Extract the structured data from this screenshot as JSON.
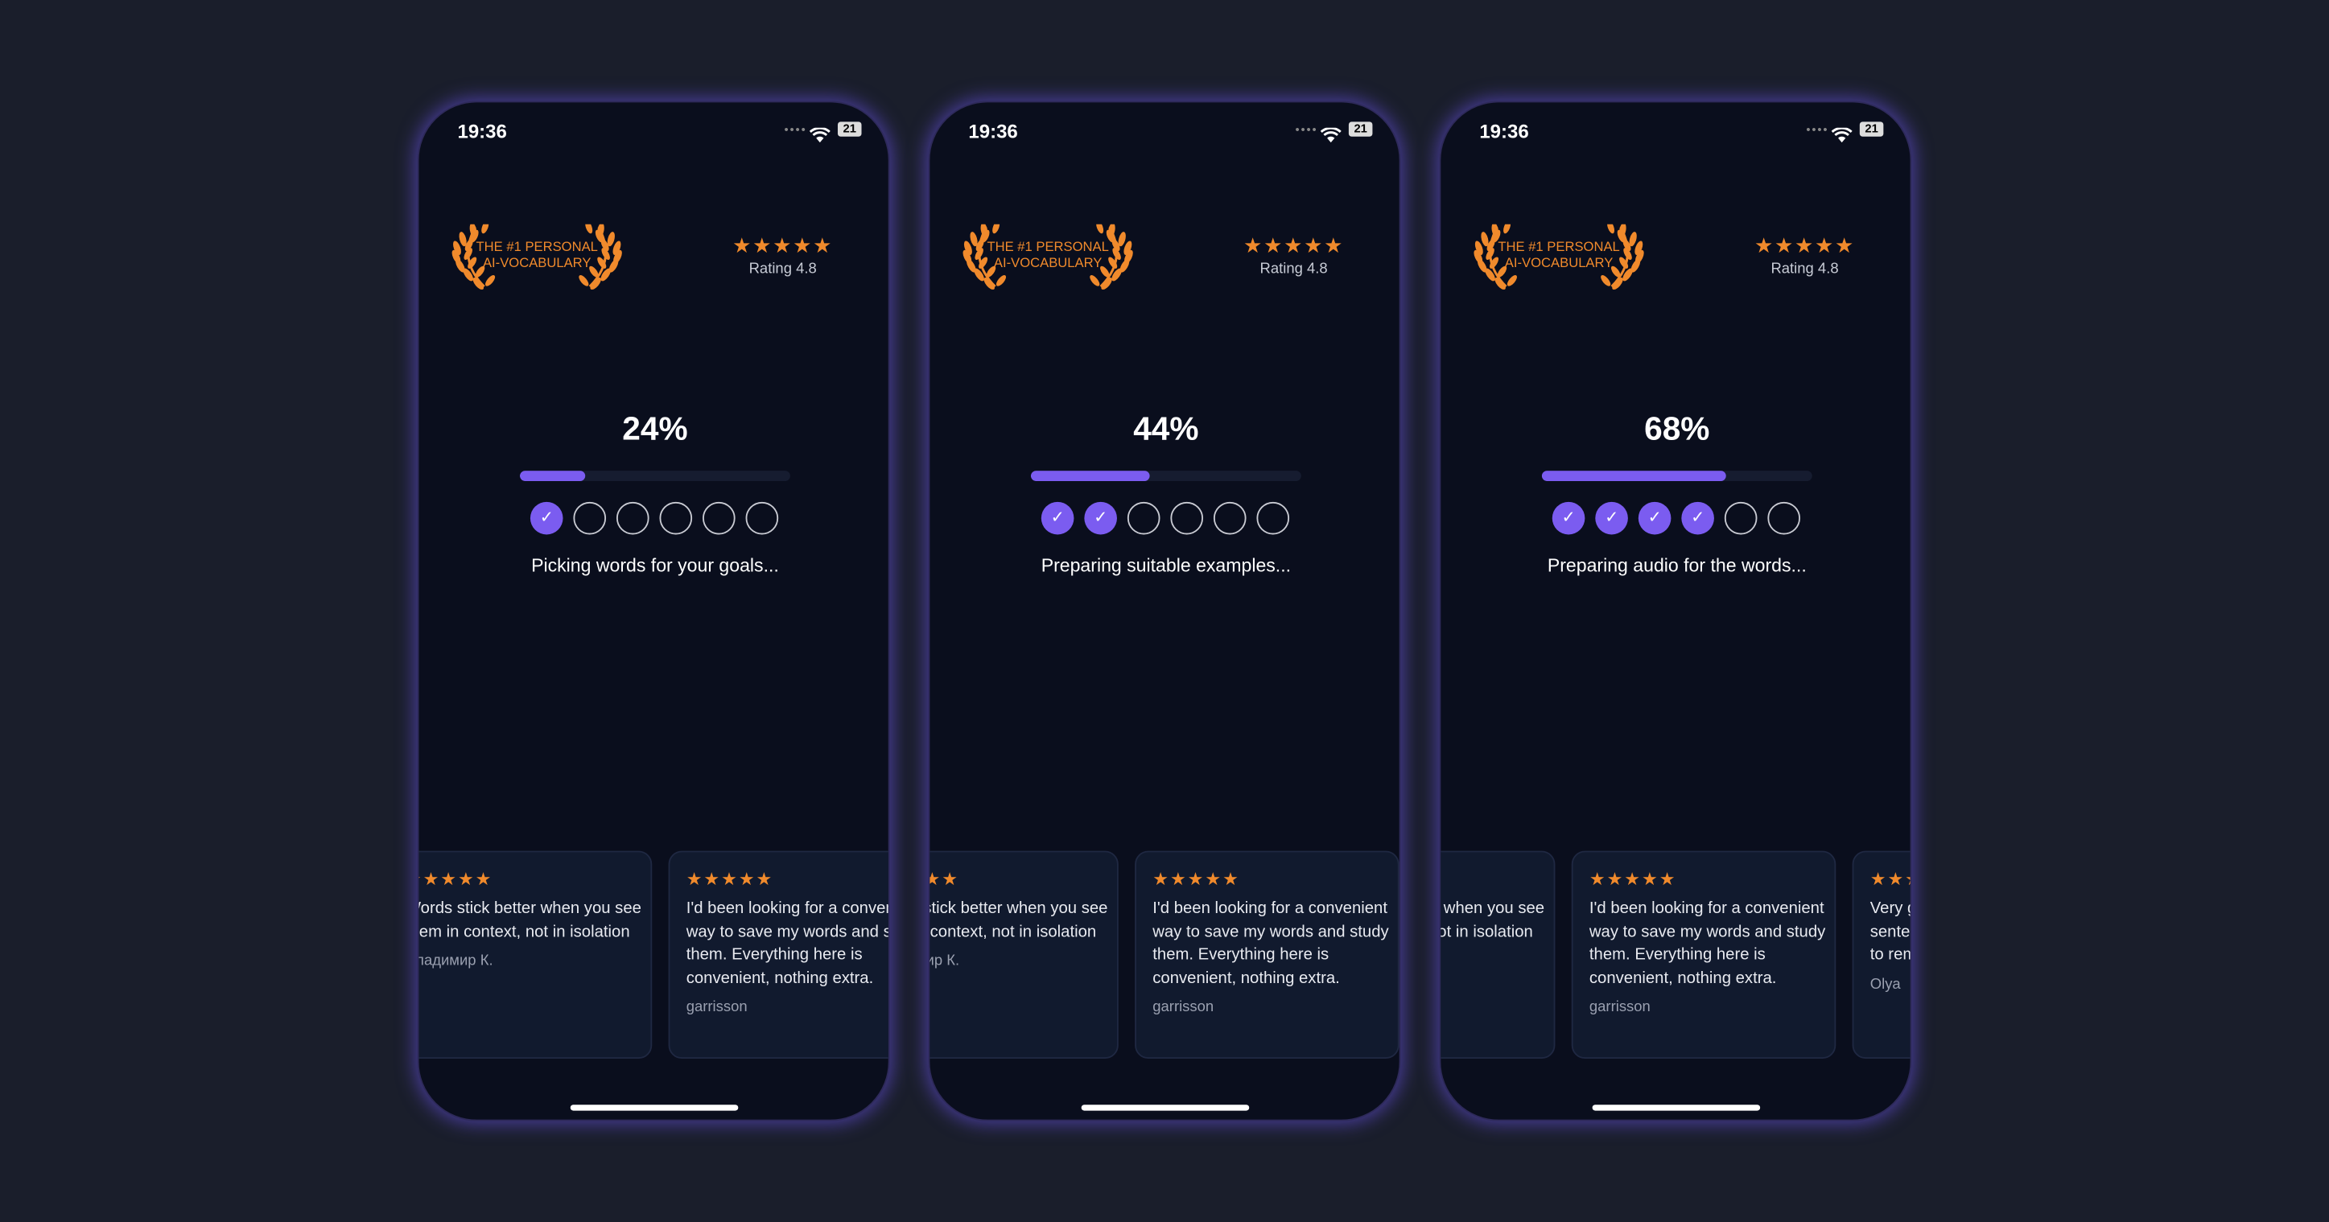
{
  "screens": [
    {
      "time": "19:36",
      "battery": "21",
      "badge": [
        "THE #1 PERSONAL",
        "AI-VOCABULARY"
      ],
      "rating": "Rating 4.8",
      "progress": {
        "value": 24,
        "label": "24%"
      },
      "steps_done": 1,
      "steps_total": 6,
      "status": "Picking words for your goals..."
    },
    {
      "time": "19:36",
      "battery": "21",
      "badge": [
        "THE #1 PERSONAL",
        "AI-VOCABULARY"
      ],
      "rating": "Rating 4.8",
      "progress": {
        "value": 44,
        "label": "44%"
      },
      "steps_done": 2,
      "steps_total": 6,
      "status": "Preparing suitable examples..."
    },
    {
      "time": "19:36",
      "battery": "21",
      "badge": [
        "THE #1 PERSONAL",
        "AI-VOCABULARY"
      ],
      "rating": "Rating 4.8",
      "progress": {
        "value": 68,
        "label": "68%"
      },
      "steps_done": 4,
      "steps_total": 6,
      "status": "Preparing audio for the words..."
    }
  ],
  "reviews": [
    {
      "text": "Words stick better when you see them in context, not in isolation",
      "author": "Владимир К."
    },
    {
      "text": "I'd been looking for a convenient way to save my words and study them. Everything here is convenient, nothing extra.",
      "author": "garrisson"
    },
    {
      "text": "Very good for learning sentences and the ones I want to remember",
      "author": "Olya"
    }
  ]
}
